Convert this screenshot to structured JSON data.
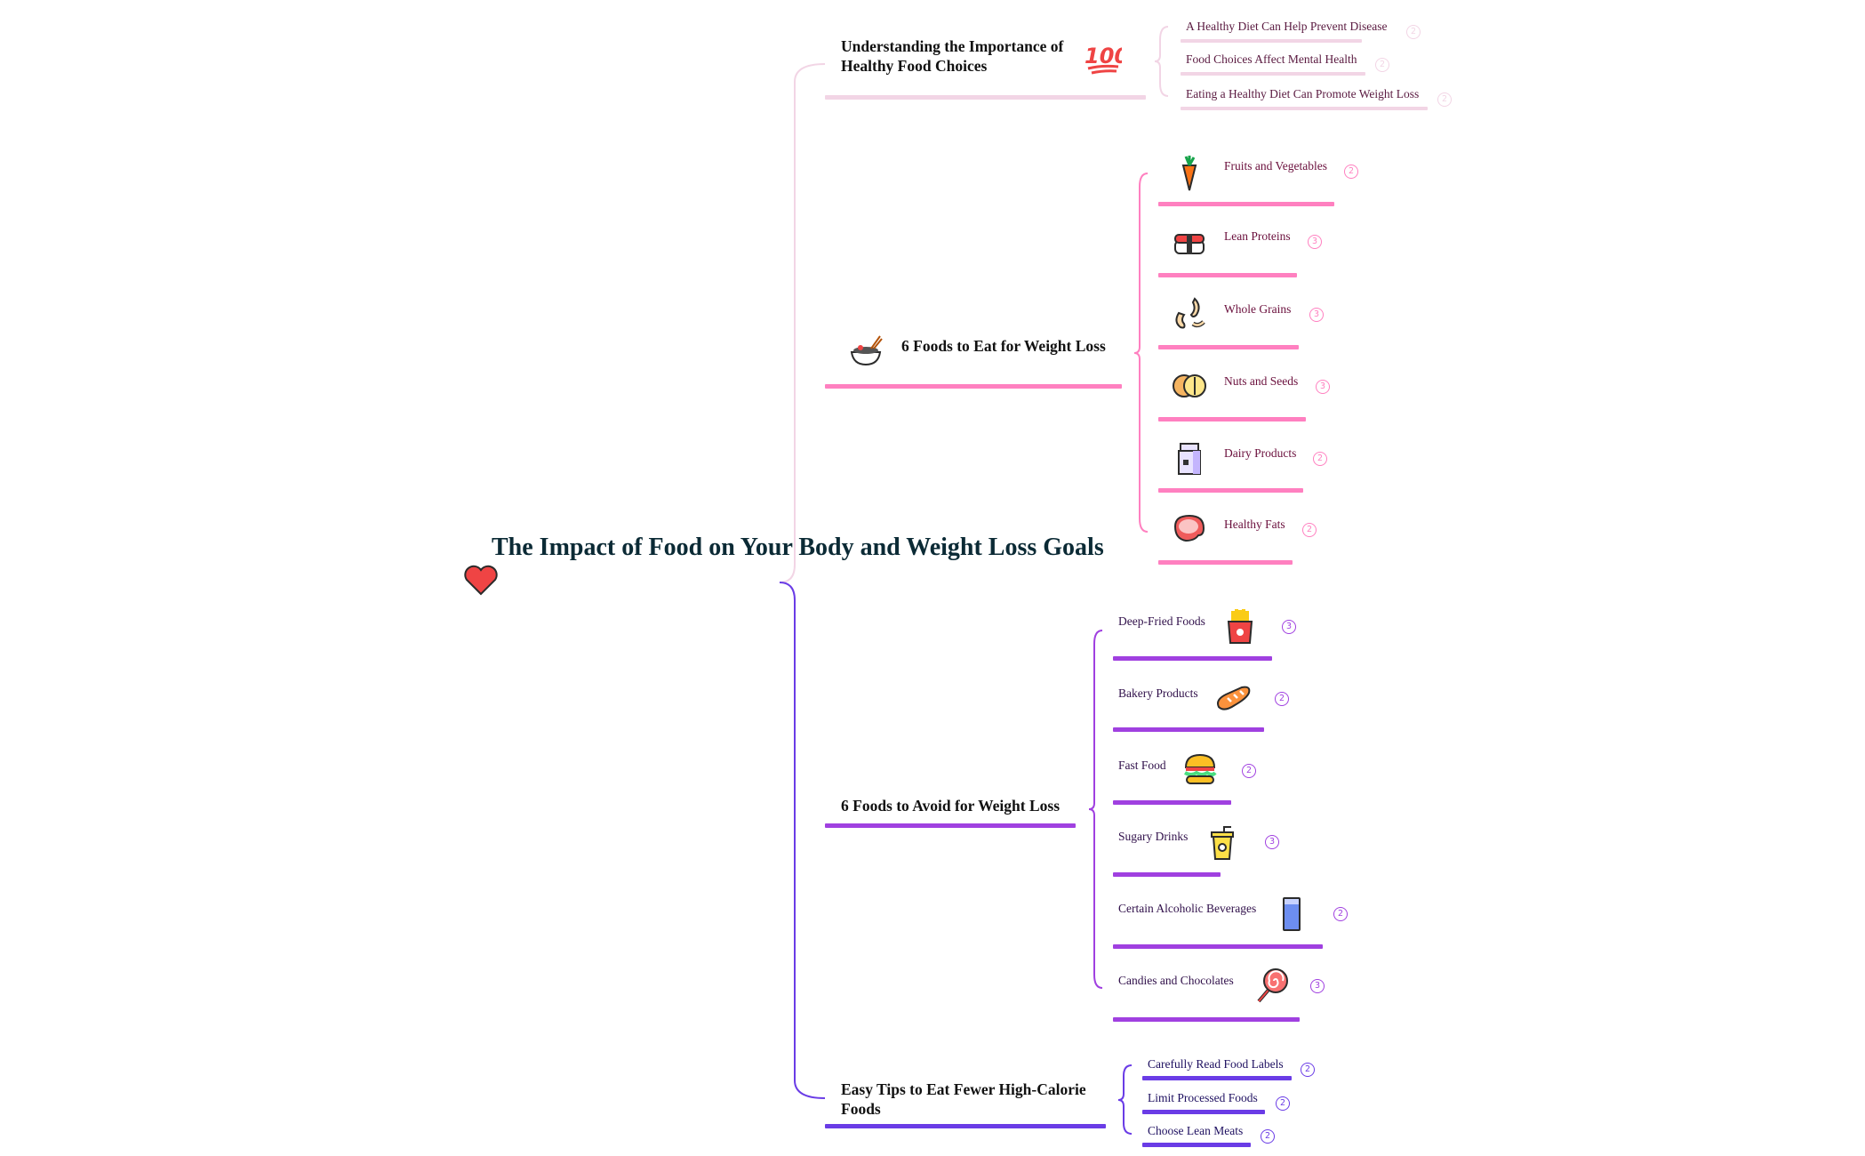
{
  "root": {
    "title": "The Impact of Food on Your Body and Weight Loss Goals",
    "icon": "heart-icon"
  },
  "colors": {
    "b1": "#f2d5e5",
    "b2": "#ff80c0",
    "b3": "#a040e0",
    "b4": "#6a3ce6",
    "root_text": "#0b2a35"
  },
  "branches": [
    {
      "label": "Understanding the Importance of Healthy Food Choices",
      "icon": "hundred-points-icon",
      "children": [
        {
          "label": "A Healthy Diet Can Help Prevent Disease",
          "badge": "2"
        },
        {
          "label": "Food Choices Affect Mental Health",
          "badge": "2"
        },
        {
          "label": "Eating a Healthy Diet Can Promote Weight Loss",
          "badge": "2"
        }
      ]
    },
    {
      "label": "6 Foods to Eat for Weight Loss",
      "icon": "bowl-icon",
      "children": [
        {
          "label": "Fruits and Vegetables",
          "badge": "2",
          "icon": "carrot-icon"
        },
        {
          "label": "Lean Proteins",
          "badge": "3",
          "icon": "sushi-icon"
        },
        {
          "label": "Whole Grains",
          "badge": "3",
          "icon": "cashew-icon"
        },
        {
          "label": "Nuts and Seeds",
          "badge": "3",
          "icon": "nut-icon"
        },
        {
          "label": "Dairy Products",
          "badge": "2",
          "icon": "milk-carton-icon"
        },
        {
          "label": "Healthy Fats",
          "badge": "2",
          "icon": "steak-icon"
        }
      ]
    },
    {
      "label": "6 Foods to Avoid for Weight Loss",
      "children": [
        {
          "label": "Deep-Fried Foods",
          "badge": "3",
          "icon": "fries-icon"
        },
        {
          "label": "Bakery Products",
          "badge": "2",
          "icon": "bread-icon"
        },
        {
          "label": "Fast Food",
          "badge": "2",
          "icon": "burger-icon"
        },
        {
          "label": "Sugary Drinks",
          "badge": "3",
          "icon": "soda-cup-icon"
        },
        {
          "label": "Certain Alcoholic Beverages",
          "badge": "2",
          "icon": "glass-icon"
        },
        {
          "label": "Candies and Chocolates",
          "badge": "3",
          "icon": "lollipop-icon"
        }
      ]
    },
    {
      "label": "Easy Tips to Eat Fewer High-Calorie Foods",
      "children": [
        {
          "label": "Carefully Read Food Labels",
          "badge": "2"
        },
        {
          "label": "Limit Processed Foods",
          "badge": "2"
        },
        {
          "label": "Choose Lean Meats",
          "badge": "2"
        }
      ]
    }
  ]
}
